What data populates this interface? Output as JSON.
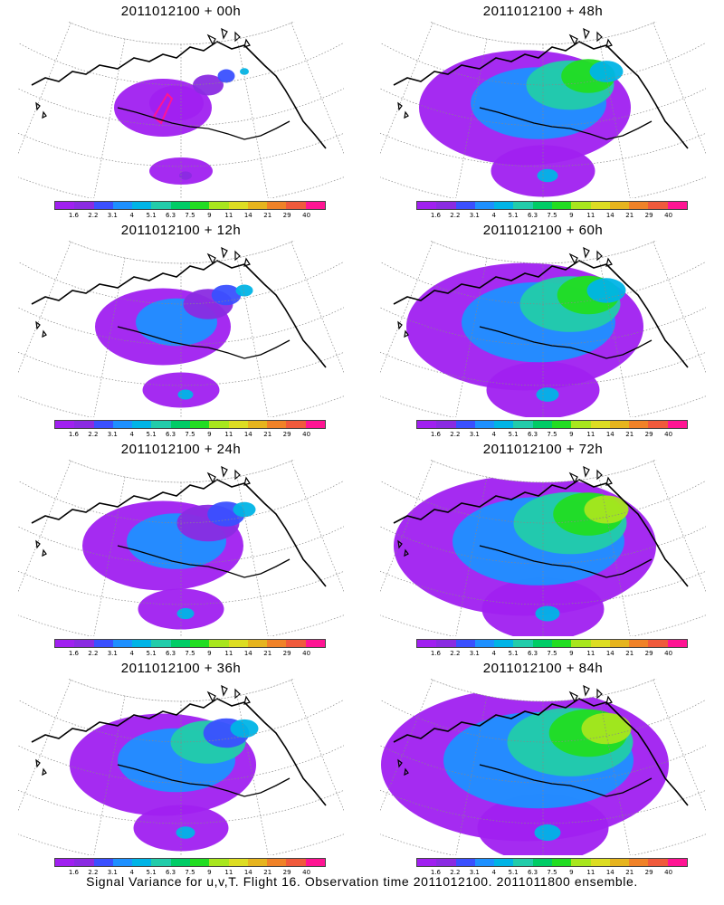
{
  "colorbar": {
    "colors": [
      "#a020f0",
      "#8a2be2",
      "#3a50ff",
      "#1e90ff",
      "#00b4e6",
      "#22ccaa",
      "#00cc66",
      "#22dd22",
      "#a8e61e",
      "#dddd22",
      "#e6b41e",
      "#f08228",
      "#f05a3c",
      "#ff1493"
    ],
    "labels": [
      "1.6",
      "2.2",
      "3.1",
      "4",
      "5.1",
      "6.3",
      "7.5",
      "9",
      "11",
      "14",
      "21",
      "29",
      "40"
    ]
  },
  "panels": [
    {
      "title": "2011012100 + 00h",
      "intensity": 0.1
    },
    {
      "title": "2011012100 + 48h",
      "intensity": 0.55
    },
    {
      "title": "2011012100 + 12h",
      "intensity": 0.25
    },
    {
      "title": "2011012100 + 60h",
      "intensity": 0.65
    },
    {
      "title": "2011012100 + 24h",
      "intensity": 0.35
    },
    {
      "title": "2011012100 + 72h",
      "intensity": 0.75
    },
    {
      "title": "2011012100 + 36h",
      "intensity": 0.45
    },
    {
      "title": "2011012100 + 84h",
      "intensity": 0.85
    }
  ],
  "caption": "Signal Variance for u,v,T. Flight 16. Observation time 2011012100. 2011011800 ensemble."
}
